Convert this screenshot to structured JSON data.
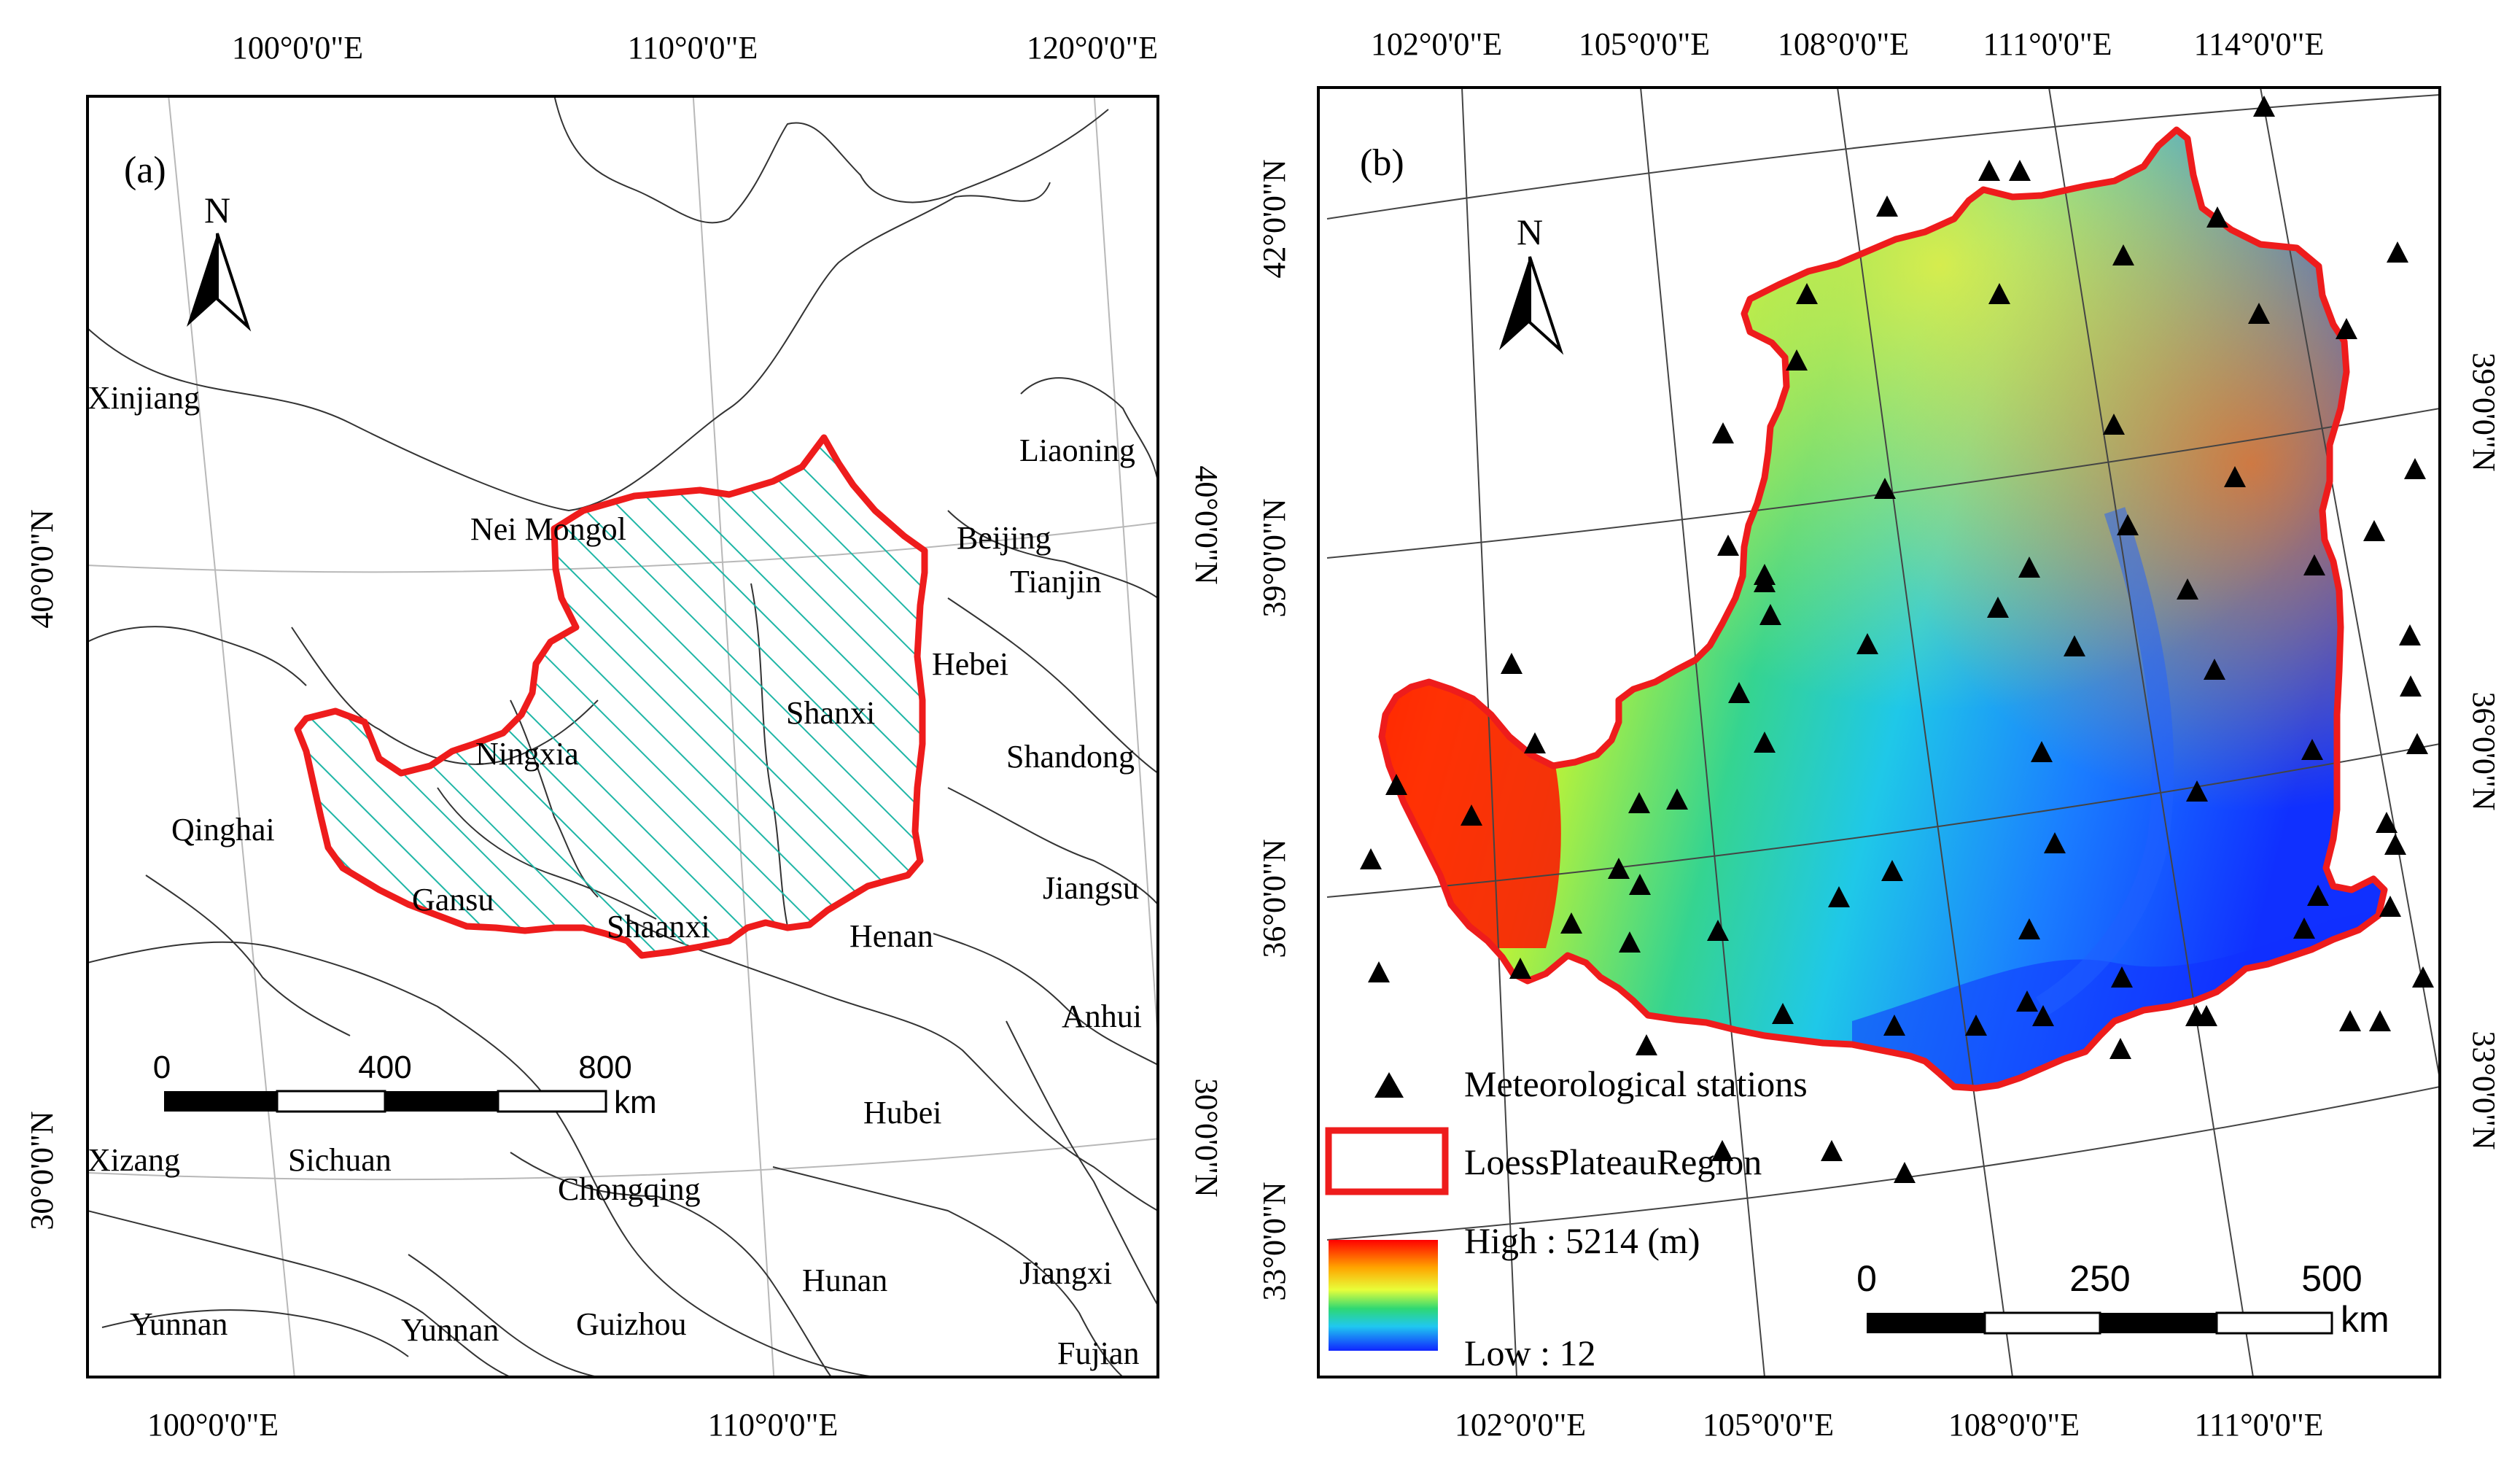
{
  "panel_a": {
    "label": "(a)",
    "north": "N",
    "top_lon": [
      "100°0'0\"E",
      "110°0'0\"E",
      "120°0'0\"E"
    ],
    "bottom_lon": [
      "100°0'0\"E",
      "110°0'0\"E"
    ],
    "left_lat": [
      "40°0'0\"N",
      "30°0'0\"N"
    ],
    "right_lat": [
      "40°0'0\"N",
      "30°0'0\"N"
    ],
    "provinces": [
      "Xinjiang",
      "Nei Mongol",
      "Liaoning",
      "Beijing",
      "Tianjin",
      "Hebei",
      "Shanxi",
      "Ningxia",
      "Shandong",
      "Qinghai",
      "Gansu",
      "Shaanxi",
      "Jiangsu",
      "Henan",
      "Anhui",
      "Hubei",
      "Xizang",
      "Sichuan",
      "Chongqing",
      "Hunan",
      "Jiangxi",
      "Yunnan",
      "Yunnan",
      "Guizhou",
      "Fujian"
    ],
    "scale": {
      "ticks": [
        "0",
        "400",
        "800"
      ],
      "unit": "km"
    }
  },
  "panel_b": {
    "label": "(b)",
    "north": "N",
    "top_lon": [
      "102°0'0\"E",
      "105°0'0\"E",
      "108°0'0\"E",
      "111°0'0\"E",
      "114°0'0\"E"
    ],
    "bottom_lon": [
      "102°0'0\"E",
      "105°0'0\"E",
      "108°0'0\"E",
      "111°0'0\"E"
    ],
    "left_lat": [
      "42°0'0\"N",
      "39°0'0\"N",
      "36°0'0\"N",
      "33°0'0\"N"
    ],
    "right_lat": [
      "39°0'0\"N",
      "36°0'0\"N",
      "33°0'0\"N"
    ],
    "legend": {
      "stations": "Meteorological stations",
      "region": "LoessPlateauRegion",
      "high": "High : 5214 (m)",
      "low": "Low : 12"
    },
    "scale": {
      "ticks": [
        "0",
        "250",
        "500"
      ],
      "unit": "km"
    }
  },
  "colors": {
    "boundary": "#ee1c1c",
    "hatch": "#1fb6a6",
    "elev_high": "#ff0000",
    "elev_mid": "#ffff00",
    "elev_low": "#0000ff"
  }
}
